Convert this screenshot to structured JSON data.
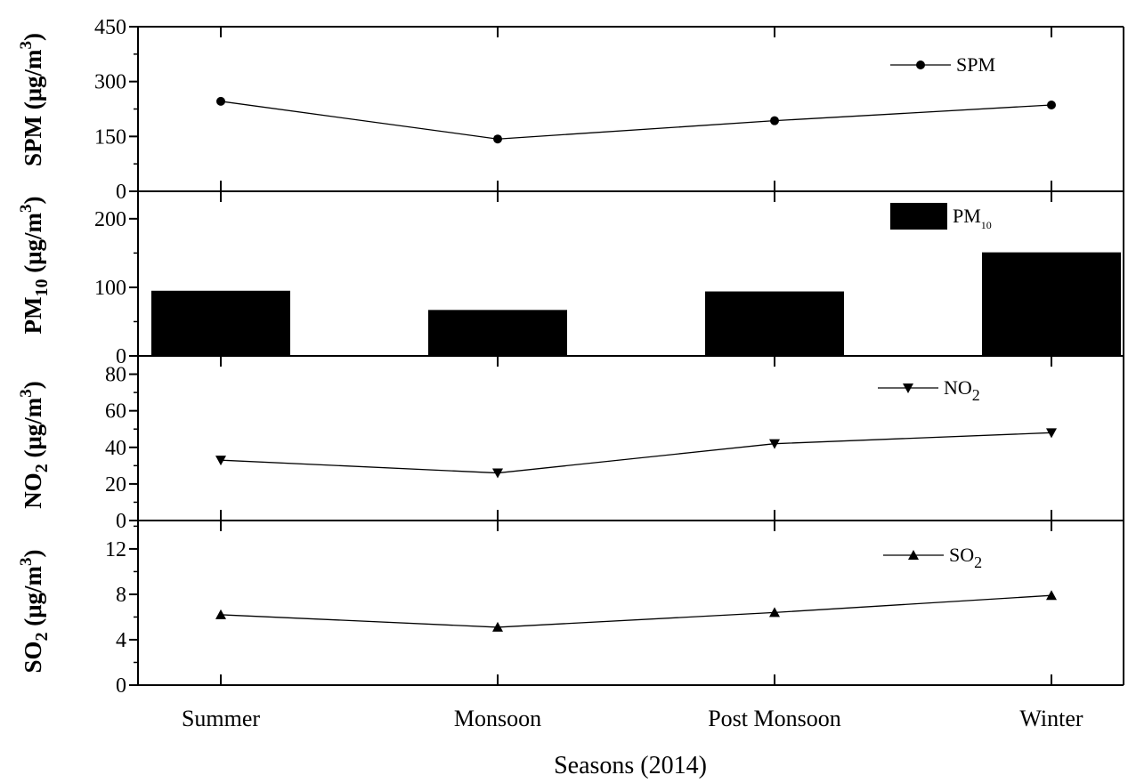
{
  "chart_data": {
    "type": "multi-panel",
    "categories": [
      "Summer",
      "Monsoon",
      "Post Monsoon",
      "Winter"
    ],
    "xlabel": "Seasons (2014)",
    "panels": [
      {
        "id": "spm",
        "type": "line",
        "marker": "circle",
        "ylabel_main": "SPM (μg/m",
        "ylabel_sub": "",
        "ylabel_sup": "3",
        "ylim": [
          0,
          450
        ],
        "yticks": [
          0,
          150,
          300,
          450
        ],
        "yminor": 75,
        "series": [
          {
            "name": "SPM",
            "name_sub": "",
            "values": [
              246,
              143,
              193,
              236
            ]
          }
        ]
      },
      {
        "id": "pm10",
        "type": "bar",
        "ylabel_main": "PM",
        "ylabel_sub": "10",
        "ylabel_tail": " (μg/m",
        "ylabel_sup": "3",
        "ylim": [
          0,
          240
        ],
        "yticks": [
          0,
          100,
          200
        ],
        "yminor": 50,
        "series": [
          {
            "name": "PM",
            "name_sub": "10",
            "values": [
              95,
              67,
              94,
              151
            ]
          }
        ]
      },
      {
        "id": "no2",
        "type": "line",
        "marker": "triangle-down",
        "ylabel_main": "NO",
        "ylabel_sub": "2",
        "ylabel_tail": " (μg/m",
        "ylabel_sup": "3",
        "ylim": [
          0,
          90
        ],
        "yticks": [
          0,
          20,
          40,
          60,
          80
        ],
        "yminor": 10,
        "series": [
          {
            "name": "NO",
            "name_sub": "2",
            "values": [
              33,
              26,
              42,
              48
            ]
          }
        ]
      },
      {
        "id": "so2",
        "type": "line",
        "marker": "triangle-up",
        "ylabel_main": "SO",
        "ylabel_sub": "2",
        "ylabel_tail": " (μg/m",
        "ylabel_sup": "3",
        "ylim": [
          0,
          14.5
        ],
        "yticks": [
          0,
          4,
          8,
          12
        ],
        "yminor": 2,
        "series": [
          {
            "name": "SO",
            "name_sub": "2",
            "values": [
              6.2,
              5.1,
              6.4,
              7.9
            ]
          }
        ]
      }
    ]
  }
}
